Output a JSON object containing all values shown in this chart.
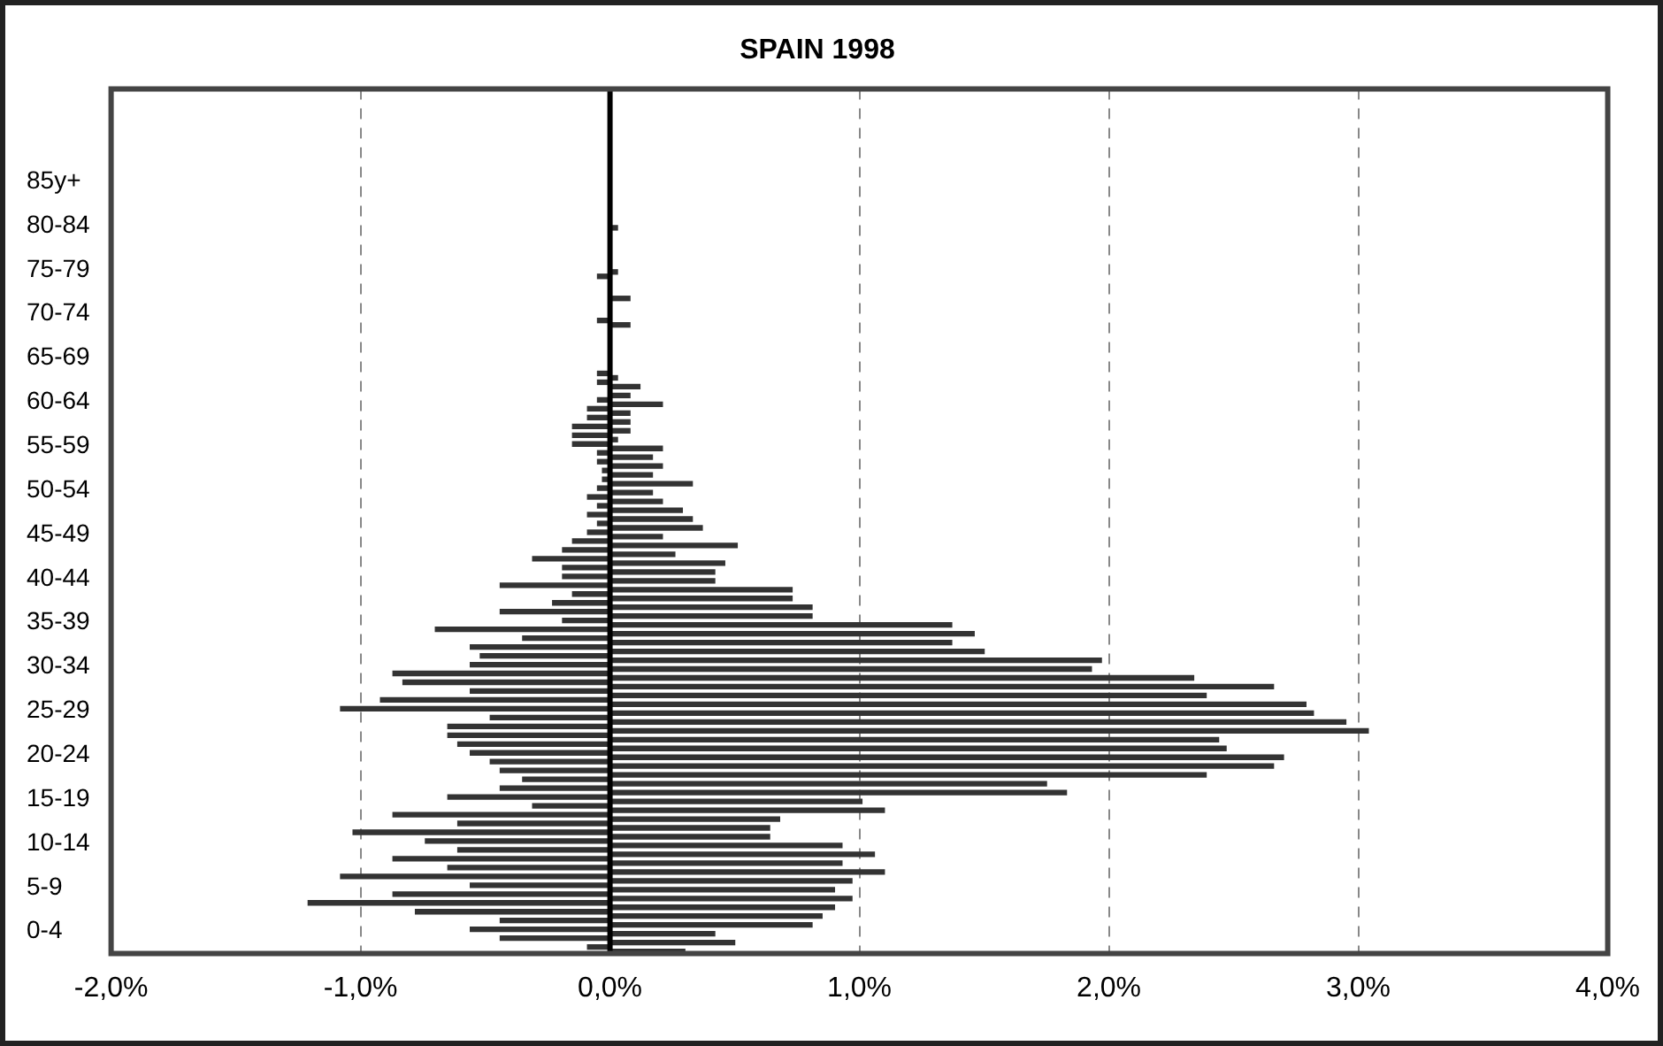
{
  "chart_data": {
    "type": "bar",
    "title": "SPAIN 1998",
    "orientation": "horizontal",
    "categories": [
      null,
      null,
      null,
      null,
      null,
      null,
      null,
      null,
      null,
      null,
      "85y+",
      null,
      null,
      null,
      null,
      "80-84",
      null,
      null,
      null,
      null,
      "75-79",
      null,
      null,
      null,
      null,
      "70-74",
      null,
      null,
      null,
      null,
      "65-69",
      null,
      null,
      null,
      null,
      "60-64",
      null,
      null,
      null,
      null,
      "55-59",
      null,
      null,
      null,
      null,
      "50-54",
      null,
      null,
      null,
      null,
      "45-49",
      null,
      null,
      null,
      null,
      "40-44",
      null,
      null,
      null,
      null,
      "35-39",
      null,
      null,
      null,
      null,
      "30-34",
      null,
      null,
      null,
      null,
      "25-29",
      null,
      null,
      null,
      null,
      "20-24",
      null,
      null,
      null,
      null,
      "15-19",
      null,
      null,
      null,
      null,
      "10-14",
      null,
      null,
      null,
      null,
      "5-9",
      null,
      null,
      null,
      null,
      "0-4",
      null,
      null
    ],
    "series": [
      {
        "color": "#333333",
        "values": [
          0,
          0,
          0,
          0,
          0,
          0,
          0,
          0,
          0,
          0,
          0,
          0,
          0,
          0,
          0,
          0,
          0,
          0,
          0,
          0,
          0,
          -0.05,
          0,
          0,
          0,
          0,
          -0.05,
          0,
          0,
          0,
          0,
          0,
          -0.05,
          -0.05,
          0,
          -0.05,
          -0.09,
          -0.09,
          -0.15,
          -0.15,
          -0.15,
          -0.05,
          -0.05,
          -0.03,
          -0.03,
          -0.05,
          -0.09,
          -0.05,
          -0.09,
          -0.05,
          -0.09,
          -0.15,
          -0.19,
          -0.31,
          -0.19,
          -0.19,
          -0.44,
          -0.15,
          -0.23,
          -0.44,
          -0.19,
          -0.7,
          -0.35,
          -0.56,
          -0.52,
          -0.56,
          -0.87,
          -0.83,
          -0.56,
          -0.92,
          -1.08,
          -0.48,
          -0.65,
          -0.65,
          -0.61,
          -0.56,
          -0.48,
          -0.44,
          -0.35,
          -0.44,
          -0.65,
          -0.31,
          -0.87,
          -0.61,
          -1.03,
          -0.74,
          -0.61,
          -0.87,
          -0.65,
          -1.08,
          -0.56,
          -0.87,
          -1.21,
          -0.78,
          -0.44,
          -0.56,
          -0.44,
          -0.09
        ]
      },
      {
        "color": "#333333",
        "values": [
          0,
          0,
          0,
          0,
          0,
          0,
          0,
          0,
          0,
          0,
          0,
          0,
          0,
          0,
          0,
          0.03,
          0,
          0,
          0,
          0,
          0.03,
          0,
          0,
          0.08,
          0,
          0,
          0.08,
          0,
          0,
          0,
          0,
          0,
          0.03,
          0.12,
          0.08,
          0.21,
          0.08,
          0.08,
          0.08,
          0.03,
          0.21,
          0.17,
          0.21,
          0.17,
          0.33,
          0.17,
          0.21,
          0.29,
          0.33,
          0.37,
          0.21,
          0.51,
          0.26,
          0.46,
          0.42,
          0.42,
          0.73,
          0.73,
          0.81,
          0.81,
          1.37,
          1.46,
          1.37,
          1.5,
          1.97,
          1.93,
          2.34,
          2.66,
          2.39,
          2.79,
          2.82,
          2.95,
          3.04,
          2.44,
          2.47,
          2.7,
          2.66,
          2.39,
          1.75,
          1.83,
          1.01,
          1.1,
          0.68,
          0.64,
          0.64,
          0.93,
          1.06,
          0.93,
          1.1,
          0.97,
          0.9,
          0.97,
          0.9,
          0.85,
          0.81,
          0.42,
          0.5,
          0.3
        ]
      }
    ],
    "xlim": [
      -2,
      4
    ],
    "xticks": [
      {
        "value": -2,
        "label": "-2,0%"
      },
      {
        "value": -1,
        "label": "-1,0%"
      },
      {
        "value": 0,
        "label": "0,0%"
      },
      {
        "value": 1,
        "label": "1,0%"
      },
      {
        "value": 2,
        "label": "2,0%"
      },
      {
        "value": 3,
        "label": "3,0%"
      },
      {
        "value": 4,
        "label": "4,0%"
      }
    ],
    "ref_lines": [
      {
        "axis": "x",
        "value": 0,
        "color": "#000000"
      }
    ],
    "grid": "x"
  }
}
